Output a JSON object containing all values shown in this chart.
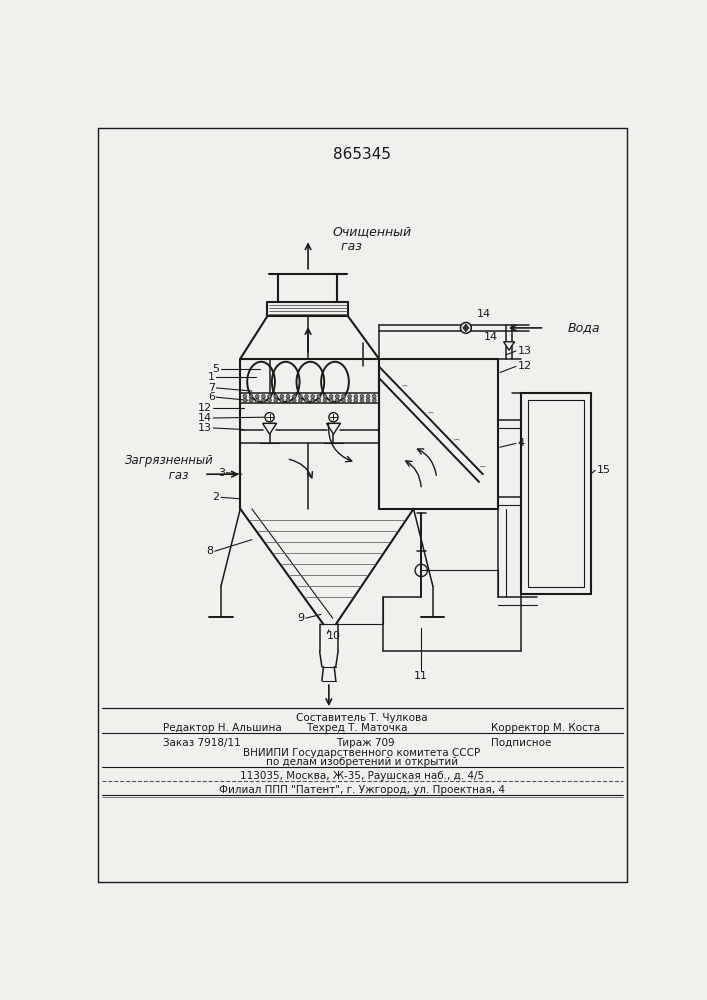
{
  "patent_number": "865345",
  "bg_color": "#f0f0ec",
  "line_color": "#1a1a1a",
  "text_color": "#1a1a1a",
  "label_clean_gas": "Очищенный\n  газ",
  "label_dirty_gas": "Загрязненный\n     газ",
  "label_water": "Вода",
  "footer_line1": "Составитель Т. Чулкова",
  "footer_line2a": "Редактор Н. Альшина",
  "footer_line2b": "Техред Т. Маточка",
  "footer_line2c": "Корректор М. Коста",
  "footer_line3a": "Заказ 7918/11",
  "footer_line3b": "Тираж 709",
  "footer_line3c": "Подписное",
  "footer_line4": "ВНИИПИ Государственного комитета СССР",
  "footer_line5": "по делам изобретений и открытий",
  "footer_line6": "113035, Москва, Ж-35, Раушская наб., д. 4/5",
  "footer_line7": "Филиал ППП \"Патент\", г. Ужгород, ул. Проектная, 4"
}
